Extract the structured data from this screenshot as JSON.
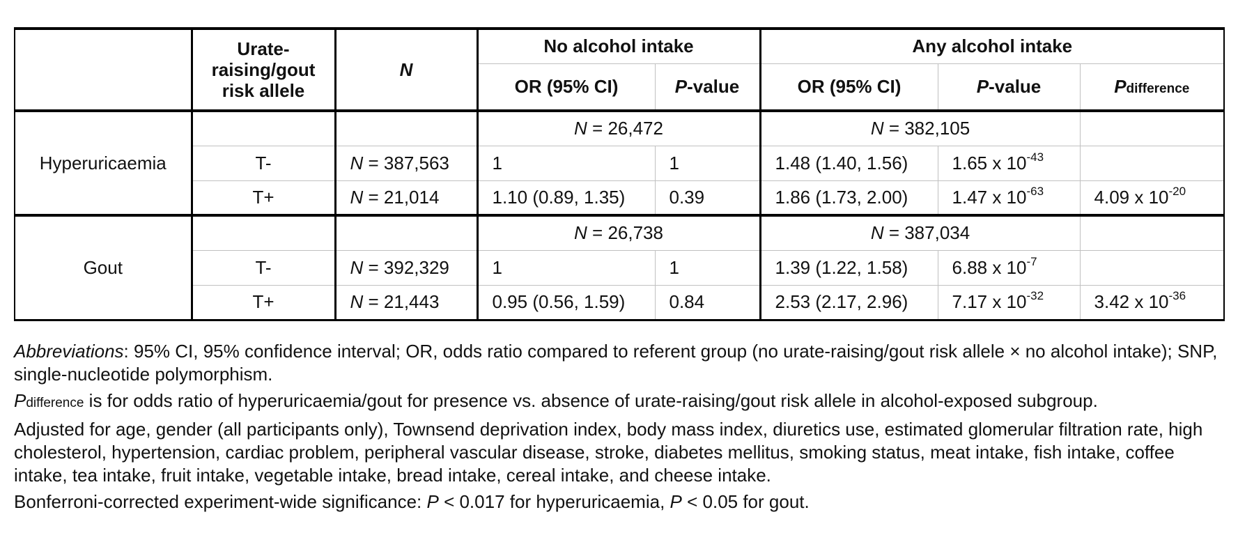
{
  "table": {
    "header": {
      "allele_col": "Urate-raising/gout risk allele",
      "allele_line1": "Urate-",
      "allele_line2": "raising/gout",
      "allele_line3": "risk allele",
      "n_col": "N",
      "no_alcohol": "No alcohol intake",
      "any_alcohol": "Any alcohol intake",
      "or_ci": "OR (95% CI)",
      "p_italic": "P",
      "p_value_suffix": "-value",
      "p_diff_main": "P",
      "p_diff_sub": "difference"
    },
    "groups": [
      {
        "name": "Hyperuricaemia",
        "subgroup_n_no_alcohol": {
          "italic": "N",
          "rest": " = 26,472"
        },
        "subgroup_n_any_alcohol": {
          "italic": "N",
          "rest": " = 382,105"
        },
        "rows": [
          {
            "allele": "T-",
            "n_italic": "N",
            "n_rest": " = 387,563",
            "no_or": "1",
            "no_p": "1",
            "any_or": "1.48 (1.40, 1.56)",
            "any_p_base": "1.65 x 10",
            "any_p_exp": "-43",
            "pdiff_base": "",
            "pdiff_exp": ""
          },
          {
            "allele": "T+",
            "n_italic": "N",
            "n_rest": " = 21,014",
            "no_or": "1.10 (0.89, 1.35)",
            "no_p": "0.39",
            "any_or": "1.86 (1.73, 2.00)",
            "any_p_base": "1.47 x 10",
            "any_p_exp": "-63",
            "pdiff_base": "4.09 x 10",
            "pdiff_exp": "-20"
          }
        ]
      },
      {
        "name": "Gout",
        "subgroup_n_no_alcohol": {
          "italic": "N",
          "rest": " = 26,738"
        },
        "subgroup_n_any_alcohol": {
          "italic": "N",
          "rest": " = 387,034"
        },
        "rows": [
          {
            "allele": "T-",
            "n_italic": "N",
            "n_rest": " = 392,329",
            "no_or": "1",
            "no_p": "1",
            "any_or": "1.39 (1.22, 1.58)",
            "any_p_base": "6.88 x 10",
            "any_p_exp": "-7",
            "pdiff_base": "",
            "pdiff_exp": ""
          },
          {
            "allele": "T+",
            "n_italic": "N",
            "n_rest": " = 21,443",
            "no_or": "0.95 (0.56, 1.59)",
            "no_p": "0.84",
            "any_or": "2.53 (2.17, 2.96)",
            "any_p_base": "7.17 x 10",
            "any_p_exp": "-32",
            "pdiff_base": "3.42 x 10",
            "pdiff_exp": "-36"
          }
        ]
      }
    ]
  },
  "notes": {
    "abbrev_label": "Abbreviations",
    "abbrev_text": ": 95% CI, 95% confidence interval; OR, odds ratio compared to referent group (no urate-raising/gout risk allele × no alcohol intake); SNP, single-nucleotide polymorphism.",
    "pdiff_main": "P",
    "pdiff_sub": "difference",
    "pdiff_text": " is for odds ratio of hyperuricaemia/gout for presence vs. absence of urate-raising/gout risk allele in alcohol-exposed subgroup.",
    "adjusted_text": "Adjusted for age, gender (all participants only), Townsend deprivation index, body mass index, diuretics use, estimated glomerular filtration rate, high cholesterol, hypertension, cardiac problem, peripheral vascular disease, stroke, diabetes mellitus, smoking status, meat intake, fish intake, coffee intake, tea intake, fruit intake, vegetable intake, bread intake, cereal intake, and cheese intake.",
    "bonf_prefix": "Bonferroni-corrected experiment-wide significance: ",
    "bonf_p1": "P",
    "bonf_mid": " < 0.017 for hyperuricaemia, ",
    "bonf_p2": "P",
    "bonf_end": " < 0.05 for gout."
  }
}
